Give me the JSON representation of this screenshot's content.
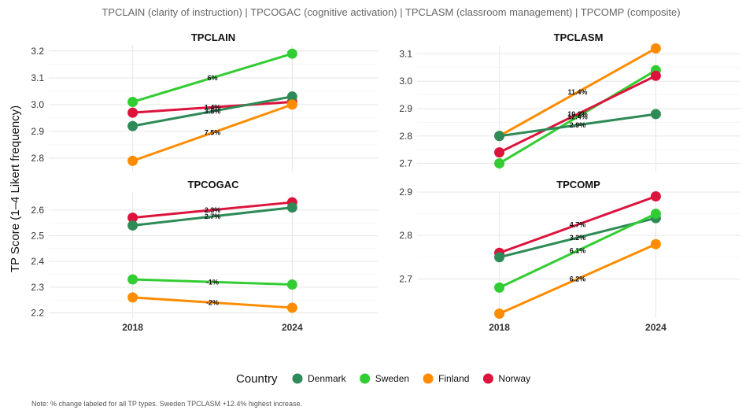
{
  "chart_data": {
    "type": "line",
    "title": "TPCLAIN (clarity of instruction) | TPCOGAC (cognitive activation) | TPCLASM (classroom management) | TPCOMP (composite)",
    "ylabel": "TP Score (1–4 Likert frequency)",
    "x": [
      "2018",
      "2024"
    ],
    "legend": {
      "title": "Country",
      "position": "bottom",
      "entries": [
        "Denmark",
        "Sweden",
        "Finland",
        "Norway"
      ]
    },
    "colors": {
      "Denmark": "#2e8b57",
      "Sweden": "#32cd32",
      "Finland": "#ff8c00",
      "Norway": "#dc143c"
    },
    "note": "Note: % change labeled for all TP types. Sweden TPCLASM +12.4% highest increase.",
    "panels": [
      {
        "title": "TPCLAIN",
        "ylim": [
          2.75,
          3.22
        ],
        "yticks": [
          "2.8",
          "2.9",
          "3.0",
          "3.1",
          "3.2"
        ],
        "series": [
          {
            "name": "Sweden",
            "values": [
              3.01,
              3.19
            ],
            "label": "6%"
          },
          {
            "name": "Norway",
            "values": [
              2.97,
              3.01
            ],
            "label": "1.4%"
          },
          {
            "name": "Denmark",
            "values": [
              2.92,
              3.03
            ],
            "label": "3.8%"
          },
          {
            "name": "Finland",
            "values": [
              2.79,
              3.0
            ],
            "label": "7.5%"
          }
        ]
      },
      {
        "title": "TPCLASM",
        "ylim": [
          2.67,
          3.13
        ],
        "yticks": [
          "2.7",
          "2.8",
          "2.9",
          "3.0",
          "3.1"
        ],
        "series": [
          {
            "name": "Finland",
            "values": [
              2.8,
              3.12
            ],
            "label": "11.4%"
          },
          {
            "name": "Sweden",
            "values": [
              2.7,
              3.04
            ],
            "label": "12.4%"
          },
          {
            "name": "Norway",
            "values": [
              2.74,
              3.02
            ],
            "label": "10.2%"
          },
          {
            "name": "Denmark",
            "values": [
              2.8,
              2.88
            ],
            "label": "2.9%"
          }
        ]
      },
      {
        "title": "TPCOGAC",
        "ylim": [
          2.18,
          2.67
        ],
        "yticks": [
          "2.2",
          "2.3",
          "2.4",
          "2.5",
          "2.6"
        ],
        "series": [
          {
            "name": "Norway",
            "values": [
              2.57,
              2.63
            ],
            "label": "2.3%"
          },
          {
            "name": "Denmark",
            "values": [
              2.54,
              2.61
            ],
            "label": "2.7%"
          },
          {
            "name": "Sweden",
            "values": [
              2.33,
              2.31
            ],
            "label": "-1%"
          },
          {
            "name": "Finland",
            "values": [
              2.26,
              2.22
            ],
            "label": "-2%"
          }
        ]
      },
      {
        "title": "TPCOMP",
        "ylim": [
          2.61,
          2.9
        ],
        "yticks": [
          "2.7",
          "2.8",
          "2.9"
        ],
        "series": [
          {
            "name": "Norway",
            "values": [
              2.76,
              2.89
            ],
            "label": "4.7%"
          },
          {
            "name": "Denmark",
            "values": [
              2.75,
              2.84
            ],
            "label": "3.2%"
          },
          {
            "name": "Sweden",
            "values": [
              2.68,
              2.85
            ],
            "label": "6.1%"
          },
          {
            "name": "Finland",
            "values": [
              2.62,
              2.78
            ],
            "label": "6.2%"
          }
        ]
      }
    ]
  }
}
